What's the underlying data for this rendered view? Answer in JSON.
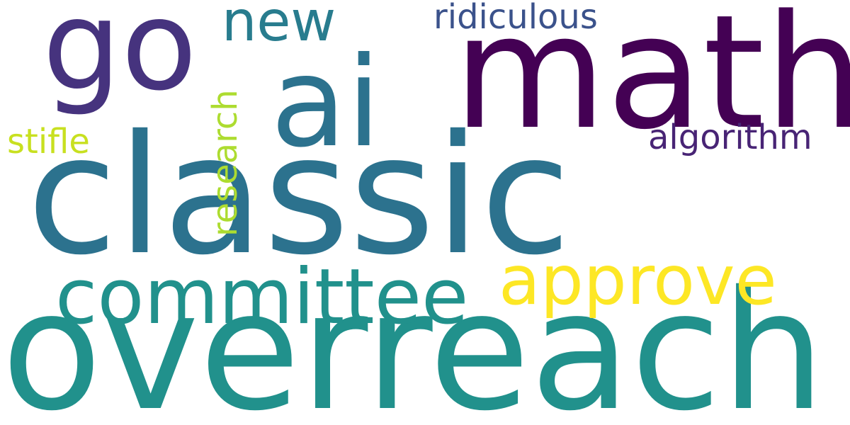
{
  "word_cloud": {
    "background": "#ffffff",
    "words": [
      {
        "text": "classic",
        "color": "#2c728e"
      },
      {
        "text": "overreach",
        "color": "#21918c"
      },
      {
        "text": "math",
        "color": "#440154"
      },
      {
        "text": "ai",
        "color": "#2c728e"
      },
      {
        "text": "go",
        "color": "#46337e"
      },
      {
        "text": "committee",
        "color": "#21918c"
      },
      {
        "text": "approve",
        "color": "#fde725"
      },
      {
        "text": "new",
        "color": "#287c8e"
      },
      {
        "text": "ridiculous",
        "color": "#3b528b"
      },
      {
        "text": "algorithm",
        "color": "#482475"
      },
      {
        "text": "stifle",
        "color": "#c8e020"
      },
      {
        "text": "research",
        "color": "#addc30"
      }
    ]
  }
}
